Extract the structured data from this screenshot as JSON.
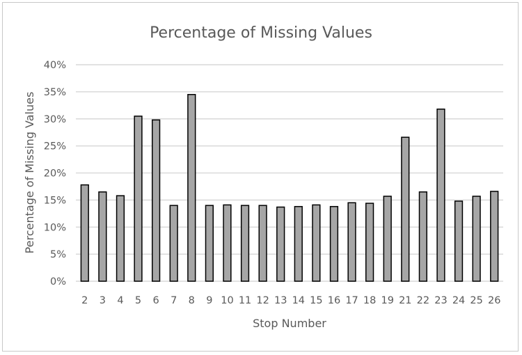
{
  "chart_data": {
    "type": "bar",
    "title": "Percentage of Missing Values",
    "xlabel": "Stop Number",
    "ylabel": "Percentage of Missing Values",
    "categories": [
      "2",
      "3",
      "4",
      "5",
      "6",
      "7",
      "8",
      "9",
      "10",
      "11",
      "12",
      "13",
      "14",
      "15",
      "16",
      "17",
      "18",
      "19",
      "21",
      "22",
      "23",
      "24",
      "25",
      "26"
    ],
    "values": [
      17.8,
      16.5,
      15.8,
      30.5,
      29.8,
      14.0,
      34.5,
      14.0,
      14.1,
      14.0,
      14.0,
      13.7,
      13.8,
      14.1,
      13.8,
      14.5,
      14.4,
      15.7,
      26.6,
      16.5,
      31.8,
      14.8,
      15.7,
      16.6
    ],
    "ylim": [
      0,
      40
    ],
    "yticks": [
      "0%",
      "5%",
      "10%",
      "15%",
      "20%",
      "25%",
      "30%",
      "35%",
      "40%"
    ],
    "grid": true,
    "legend": "none",
    "colors": {
      "bar_fill": "#a6a6a6",
      "bar_outline": "#000000",
      "grid": "#d9d9d9",
      "text": "#595959"
    }
  }
}
